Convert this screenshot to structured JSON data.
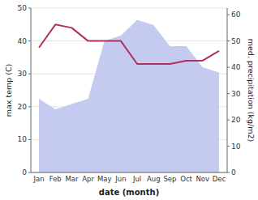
{
  "chart_data": {
    "type": "line",
    "xlabel": "date (month)",
    "ylabel": "max temp (C)",
    "y2label": "med. precipitation (kg/m2)",
    "categories": [
      "Jan",
      "Feb",
      "Mar",
      "Apr",
      "May",
      "Jun",
      "Jul",
      "Aug",
      "Sep",
      "Oct",
      "Nov",
      "Dec"
    ],
    "series": [
      {
        "type": "area",
        "axis": "y2",
        "color": "#c5caf0",
        "values": [
          28,
          24,
          26,
          28,
          50,
          52,
          58,
          56,
          48,
          48,
          40,
          38
        ]
      },
      {
        "type": "line",
        "color": "#b03060",
        "values": [
          38,
          45,
          44,
          40,
          40,
          40,
          33,
          33,
          33,
          34,
          34,
          37
        ]
      }
    ],
    "ylim": [
      0,
      50
    ],
    "yticks": [
      0,
      10,
      20,
      30,
      40,
      50
    ],
    "y2lim": [
      0,
      62.5
    ],
    "y2ticks": [
      0,
      10,
      20,
      30,
      40,
      50,
      60
    ],
    "grid": true
  }
}
